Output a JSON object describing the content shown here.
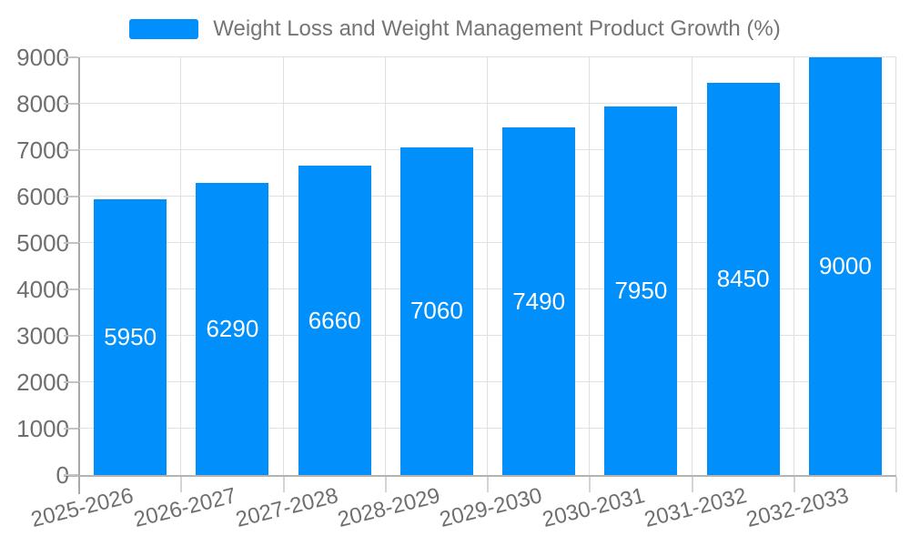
{
  "legend": {
    "series_label": "Weight Loss and Weight Management Product Growth (%)"
  },
  "colors": {
    "bar": "#008FFB",
    "grid": "#e0e0e0",
    "axis": "#b3b3b3",
    "tick": "#d4d4d4",
    "axis_label_text": "#6f6f6f",
    "legend_text": "#757575",
    "data_label_text": "#ffffff"
  },
  "y_axis": {
    "tick_labels": [
      "0",
      "1000",
      "2000",
      "3000",
      "4000",
      "5000",
      "6000",
      "7000",
      "8000",
      "9000"
    ]
  },
  "chart_data": {
    "type": "bar",
    "title": "Weight Loss and Weight Management Product Growth (%)",
    "categories": [
      "2025-2026",
      "2026-2027",
      "2027-2028",
      "2028-2029",
      "2029-2030",
      "2030-2031",
      "2031-2032",
      "2032-2033"
    ],
    "series": [
      {
        "name": "Weight Loss and Weight Management Product Growth (%)",
        "values": [
          5950,
          6290,
          6660,
          7060,
          7490,
          7950,
          8450,
          9000
        ]
      }
    ],
    "data_labels": [
      "5950",
      "6290",
      "6660",
      "7060",
      "7490",
      "7950",
      "8450",
      "9000"
    ],
    "xlabel": "",
    "ylabel": "",
    "ylim": [
      0,
      9000
    ],
    "ytick_step": 1000,
    "grid": true,
    "legend_position": "top",
    "x_label_rotation_deg": -14
  }
}
